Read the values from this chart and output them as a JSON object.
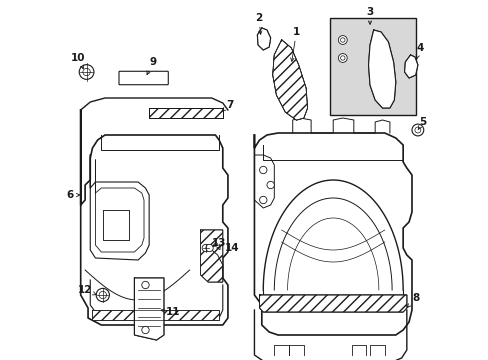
{
  "bg_color": "#ffffff",
  "line_color": "#1a1a1a",
  "fig_width": 4.89,
  "fig_height": 3.6,
  "dpi": 100,
  "label_fs": 7.0
}
